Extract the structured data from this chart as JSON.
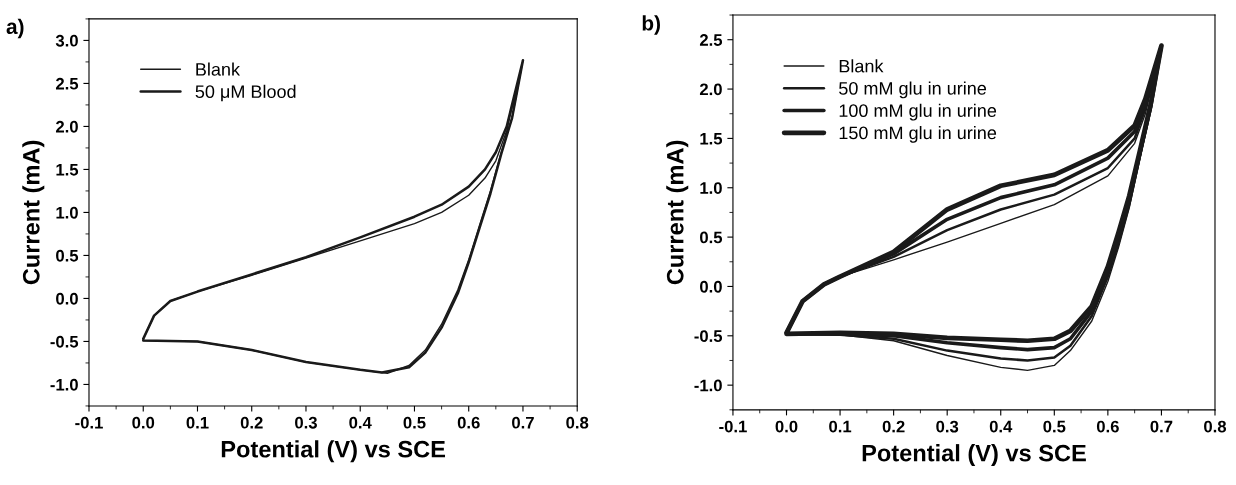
{
  "chart_data": [
    {
      "type": "line",
      "title": "a)",
      "xlabel": "Potential (V) vs SCE",
      "ylabel": "Current (mA)",
      "xlim": [
        -0.1,
        0.8
      ],
      "xticks": [
        -0.1,
        {
          "value": 0,
          "label": "0.0"
        },
        0.1,
        0.2,
        0.3,
        0.4,
        0.5,
        0.6,
        0.7,
        0.8
      ],
      "ylim": [
        -1.25,
        3.25
      ],
      "yticks": [
        {
          "value": -1,
          "label": "-1.0"
        },
        -0.5,
        {
          "value": 0,
          "label": "0.0"
        },
        0.5,
        {
          "value": 1,
          "label": "1.0"
        },
        1.5,
        {
          "value": 2,
          "label": "2.0"
        },
        2.5,
        {
          "value": 3,
          "label": "3.0"
        }
      ],
      "grid": false,
      "legend": "top left",
      "marker": "none",
      "line_style": "solid",
      "series": [
        {
          "name": "Blank",
          "color": "#1a1a1a",
          "x": [
            0,
            0.02,
            0.05,
            0.1,
            0.2,
            0.3,
            0.4,
            0.5,
            0.55,
            0.6,
            0.63,
            0.65,
            0.67,
            0.7,
            0.68,
            0.66,
            0.64,
            0.62,
            0.6,
            0.58,
            0.55,
            0.52,
            0.49,
            0.45,
            0.4,
            0.3,
            0.2,
            0.1,
            0.0
          ],
          "values": [
            -0.47,
            -0.2,
            -0.03,
            0.08,
            0.27,
            0.47,
            0.67,
            0.87,
            1.0,
            1.2,
            1.4,
            1.6,
            1.95,
            2.77,
            2.1,
            1.7,
            1.25,
            0.85,
            0.45,
            0.1,
            -0.3,
            -0.6,
            -0.78,
            -0.87,
            -0.83,
            -0.74,
            -0.6,
            -0.5,
            -0.49
          ]
        },
        {
          "name": "50 μM Blood",
          "color": "#1a1a1a",
          "x": [
            0,
            0.02,
            0.05,
            0.1,
            0.2,
            0.3,
            0.4,
            0.5,
            0.55,
            0.6,
            0.63,
            0.65,
            0.67,
            0.7,
            0.68,
            0.66,
            0.64,
            0.62,
            0.6,
            0.58,
            0.55,
            0.52,
            0.49,
            0.44,
            0.4,
            0.3,
            0.2,
            0.1,
            0.0
          ],
          "values": [
            -0.47,
            -0.2,
            -0.03,
            0.08,
            0.28,
            0.48,
            0.71,
            0.95,
            1.09,
            1.3,
            1.5,
            1.7,
            2.0,
            2.77,
            2.1,
            1.68,
            1.22,
            0.82,
            0.42,
            0.06,
            -0.34,
            -0.63,
            -0.8,
            -0.86,
            -0.83,
            -0.74,
            -0.6,
            -0.5,
            -0.49
          ]
        }
      ]
    },
    {
      "type": "line",
      "title": "b)",
      "xlabel": "Potential (V) vs SCE",
      "ylabel": "Current (mA)",
      "xlim": [
        -0.1,
        0.8
      ],
      "xticks": [
        -0.1,
        {
          "value": 0,
          "label": "0.0"
        },
        0.1,
        0.2,
        0.3,
        0.4,
        0.5,
        0.6,
        0.7,
        0.8
      ],
      "ylim": [
        -1.25,
        2.75
      ],
      "yticks": [
        {
          "value": -1,
          "label": "-1.0"
        },
        -0.5,
        {
          "value": 0,
          "label": "0.0"
        },
        0.5,
        {
          "value": 1,
          "label": "1.0"
        },
        1.5,
        {
          "value": 2,
          "label": "2.0"
        },
        2.5
      ],
      "grid": false,
      "legend": "top left",
      "marker": "none",
      "line_style": "solid",
      "series": [
        {
          "name": "Blank",
          "color": "#1a1a1a",
          "x": [
            0,
            0.03,
            0.07,
            0.1,
            0.2,
            0.3,
            0.4,
            0.5,
            0.6,
            0.65,
            0.67,
            0.7,
            0.68,
            0.66,
            0.64,
            0.62,
            0.6,
            0.57,
            0.53,
            0.5,
            0.45,
            0.4,
            0.3,
            0.2,
            0.1,
            0.0
          ],
          "values": [
            -0.47,
            -0.15,
            0.02,
            0.1,
            0.27,
            0.45,
            0.64,
            0.83,
            1.12,
            1.45,
            1.75,
            2.44,
            1.8,
            1.3,
            0.8,
            0.4,
            0.05,
            -0.35,
            -0.65,
            -0.8,
            -0.85,
            -0.82,
            -0.7,
            -0.55,
            -0.49,
            -0.48
          ]
        },
        {
          "name": "50 mM glu in urine",
          "color": "#1a1a1a",
          "x": [
            0,
            0.03,
            0.07,
            0.1,
            0.2,
            0.3,
            0.4,
            0.5,
            0.6,
            0.65,
            0.67,
            0.7,
            0.68,
            0.66,
            0.64,
            0.62,
            0.6,
            0.57,
            0.53,
            0.5,
            0.45,
            0.4,
            0.3,
            0.2,
            0.1,
            0.0
          ],
          "values": [
            -0.47,
            -0.15,
            0.02,
            0.1,
            0.3,
            0.57,
            0.78,
            0.93,
            1.2,
            1.5,
            1.8,
            2.44,
            1.8,
            1.32,
            0.83,
            0.44,
            0.1,
            -0.3,
            -0.6,
            -0.72,
            -0.75,
            -0.73,
            -0.65,
            -0.53,
            -0.49,
            -0.48
          ]
        },
        {
          "name": "100 mM glu in urine",
          "color": "#1a1a1a",
          "x": [
            0,
            0.03,
            0.07,
            0.1,
            0.2,
            0.3,
            0.4,
            0.5,
            0.6,
            0.65,
            0.67,
            0.7,
            0.68,
            0.66,
            0.64,
            0.62,
            0.6,
            0.57,
            0.53,
            0.5,
            0.45,
            0.4,
            0.3,
            0.2,
            0.1,
            0.0
          ],
          "values": [
            -0.47,
            -0.15,
            0.02,
            0.1,
            0.33,
            0.68,
            0.9,
            1.03,
            1.3,
            1.57,
            1.85,
            2.44,
            1.82,
            1.35,
            0.87,
            0.5,
            0.15,
            -0.25,
            -0.53,
            -0.62,
            -0.64,
            -0.62,
            -0.57,
            -0.5,
            -0.48,
            -0.48
          ]
        },
        {
          "name": "150 mM glu in urine",
          "color": "#1a1a1a",
          "x": [
            0,
            0.03,
            0.07,
            0.1,
            0.2,
            0.3,
            0.4,
            0.5,
            0.6,
            0.65,
            0.67,
            0.7,
            0.68,
            0.66,
            0.64,
            0.62,
            0.6,
            0.57,
            0.53,
            0.5,
            0.45,
            0.4,
            0.3,
            0.2,
            0.1,
            0.0
          ],
          "values": [
            -0.47,
            -0.15,
            0.02,
            0.1,
            0.35,
            0.78,
            1.02,
            1.13,
            1.38,
            1.63,
            1.9,
            2.44,
            1.85,
            1.38,
            0.92,
            0.55,
            0.2,
            -0.2,
            -0.45,
            -0.53,
            -0.55,
            -0.54,
            -0.52,
            -0.48,
            -0.47,
            -0.48
          ]
        }
      ]
    }
  ]
}
